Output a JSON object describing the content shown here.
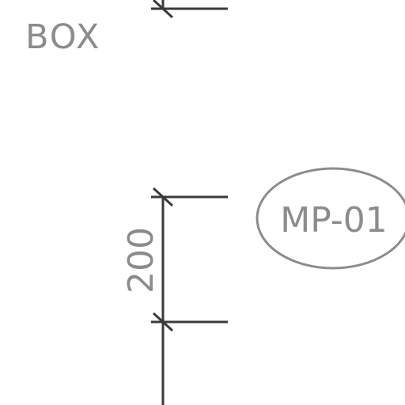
{
  "drawing": {
    "box_label": "BOX",
    "dimension_value": "200",
    "tag_label": "MP-01",
    "colors": {
      "line": "#3a3a3a",
      "text": "#8c8c8c",
      "background": "#ffffff"
    }
  }
}
